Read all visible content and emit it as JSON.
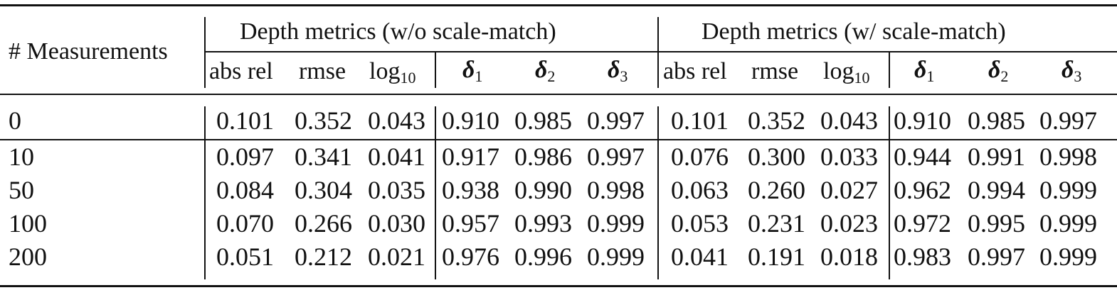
{
  "table": {
    "row_header": "# Measurements",
    "group_headers": [
      "Depth metrics (w/o scale-match)",
      "Depth metrics (w/ scale-match)"
    ],
    "sub_headers": {
      "abs_rel": "abs rel",
      "rmse": "rmse",
      "log_base": "log",
      "log_sub": "10",
      "delta": "δ",
      "d1": "1",
      "d2": "2",
      "d3": "3"
    },
    "rows": [
      {
        "m": "0",
        "v": [
          "0.101",
          "0.352",
          "0.043",
          "0.910",
          "0.985",
          "0.997",
          "0.101",
          "0.352",
          "0.043",
          "0.910",
          "0.985",
          "0.997"
        ]
      },
      {
        "m": "10",
        "v": [
          "0.097",
          "0.341",
          "0.041",
          "0.917",
          "0.986",
          "0.997",
          "0.076",
          "0.300",
          "0.033",
          "0.944",
          "0.991",
          "0.998"
        ]
      },
      {
        "m": "50",
        "v": [
          "0.084",
          "0.304",
          "0.035",
          "0.938",
          "0.990",
          "0.998",
          "0.063",
          "0.260",
          "0.027",
          "0.962",
          "0.994",
          "0.999"
        ]
      },
      {
        "m": "100",
        "v": [
          "0.070",
          "0.266",
          "0.030",
          "0.957",
          "0.993",
          "0.999",
          "0.053",
          "0.231",
          "0.023",
          "0.972",
          "0.995",
          "0.999"
        ]
      },
      {
        "m": "200",
        "v": [
          "0.051",
          "0.212",
          "0.021",
          "0.976",
          "0.996",
          "0.999",
          "0.041",
          "0.191",
          "0.018",
          "0.983",
          "0.997",
          "0.999"
        ]
      }
    ]
  }
}
